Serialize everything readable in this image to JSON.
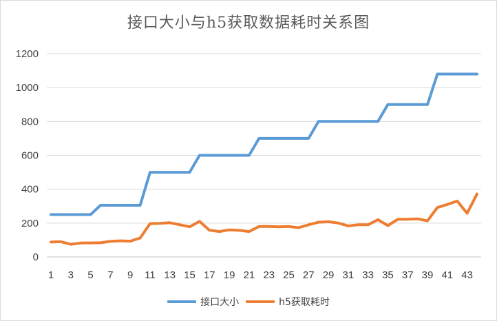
{
  "chart_data": {
    "type": "line",
    "title": "接口大小与h5获取数据耗时关系图",
    "xlabel": "",
    "ylabel": "",
    "ylim": [
      0,
      1200
    ],
    "yticks": [
      0,
      200,
      400,
      600,
      800,
      1000,
      1200
    ],
    "x": [
      1,
      2,
      3,
      4,
      5,
      6,
      7,
      8,
      9,
      10,
      11,
      12,
      13,
      14,
      15,
      16,
      17,
      18,
      19,
      20,
      21,
      22,
      23,
      24,
      25,
      26,
      27,
      28,
      29,
      30,
      31,
      32,
      33,
      34,
      35,
      36,
      37,
      38,
      39,
      40,
      41,
      42,
      43,
      44
    ],
    "xtick_labels": [
      "1",
      "3",
      "5",
      "7",
      "9",
      "11",
      "13",
      "15",
      "17",
      "19",
      "21",
      "23",
      "25",
      "27",
      "29",
      "31",
      "33",
      "35",
      "37",
      "39",
      "41",
      "43"
    ],
    "grid": "horizontal",
    "legend_position": "bottom",
    "series": [
      {
        "name": "接口大小",
        "color": "#5b9bd5",
        "values": [
          250,
          250,
          250,
          250,
          250,
          305,
          305,
          305,
          305,
          305,
          500,
          500,
          500,
          500,
          500,
          600,
          600,
          600,
          600,
          600,
          600,
          700,
          700,
          700,
          700,
          700,
          700,
          800,
          800,
          800,
          800,
          800,
          800,
          800,
          900,
          900,
          900,
          900,
          900,
          1080,
          1080,
          1080,
          1080,
          1080
        ]
      },
      {
        "name": "h5获取耗时",
        "color": "#ed7d31",
        "values": [
          88,
          90,
          75,
          82,
          83,
          84,
          92,
          95,
          93,
          112,
          197,
          198,
          202,
          190,
          178,
          210,
          158,
          150,
          160,
          157,
          150,
          180,
          180,
          178,
          180,
          173,
          190,
          205,
          208,
          200,
          183,
          190,
          190,
          220,
          185,
          222,
          223,
          225,
          213,
          292,
          310,
          330,
          258,
          372
        ]
      }
    ]
  }
}
